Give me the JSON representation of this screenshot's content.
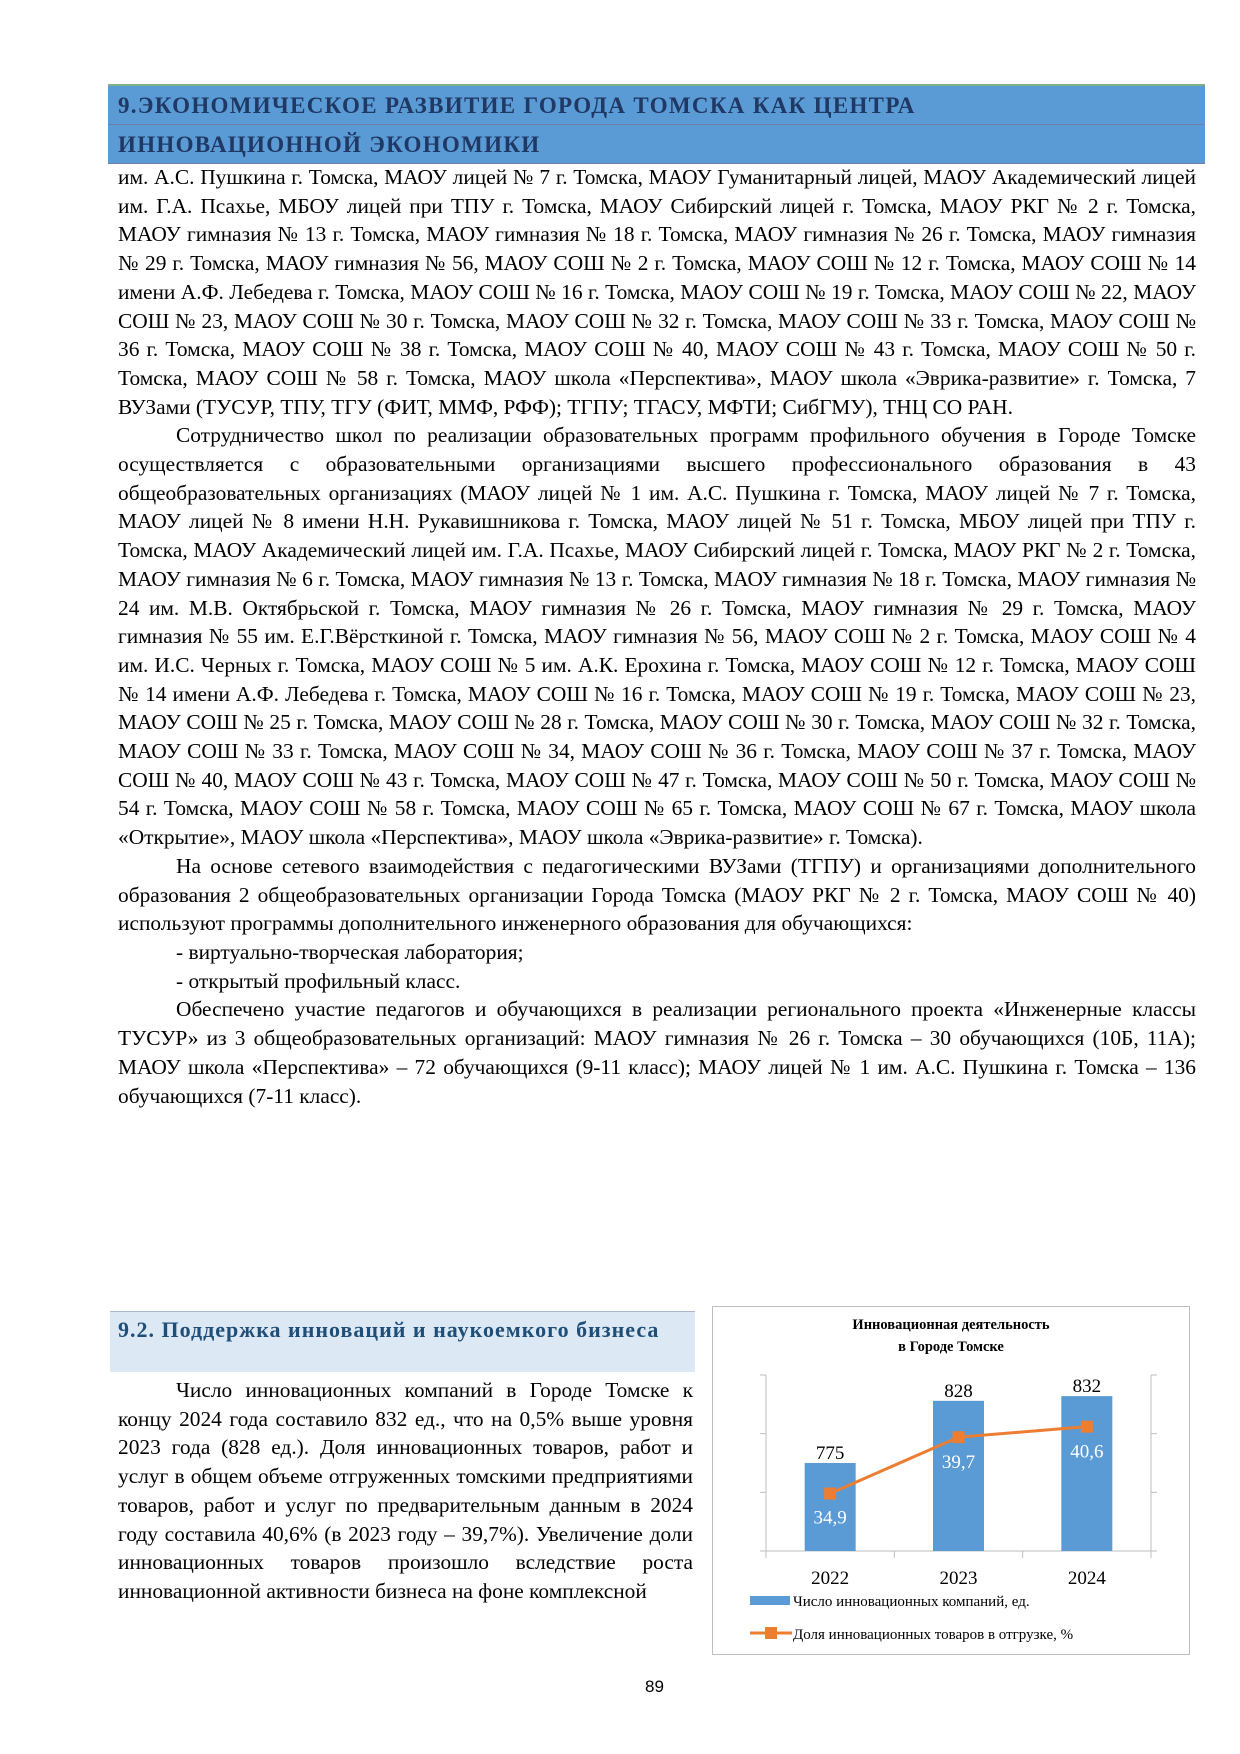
{
  "section_header": {
    "line1": "9.ЭКОНОМИЧЕСКОЕ РАЗВИТИЕ ГОРОДА ТОМСКА КАК ЦЕНТРА",
    "line2": "ИННОВАЦИОННОЙ ЭКОНОМИКИ"
  },
  "body": {
    "p1": "им. А.С. Пушкина г. Томска, МАОУ лицей № 7 г. Томска, МАОУ Гуманитарный лицей, МАОУ Академический лицей им. Г.А. Псахье, МБОУ лицей при ТПУ г. Томска, МАОУ Сибирский лицей г. Томска, МАОУ РКГ № 2 г. Томска, МАОУ гимназия № 13 г. Томска, МАОУ гимназия № 18 г. Томска, МАОУ гимназия № 26 г. Томска, МАОУ гимназия № 29 г. Томска, МАОУ гимназия № 56,  МАОУ СОШ № 2 г. Томска, МАОУ СОШ № 12 г. Томска, МАОУ СОШ № 14 имени А.Ф. Лебедева г. Томска, МАОУ СОШ № 16 г. Томска, МАОУ СОШ № 19 г. Томска, МАОУ СОШ № 22, МАОУ СОШ № 23, МАОУ СОШ № 30 г. Томска, МАОУ СОШ № 32 г. Томска, МАОУ СОШ № 33 г. Томска, МАОУ СОШ № 36 г. Томска, МАОУ СОШ № 38 г. Томска, МАОУ СОШ № 40, МАОУ СОШ № 43 г. Томска, МАОУ СОШ № 50 г. Томска, МАОУ СОШ № 58 г. Томска, МАОУ школа «Перспектива», МАОУ школа «Эврика-развитие» г. Томска, 7 ВУЗами (ТУСУР, ТПУ, ТГУ (ФИТ, ММФ, РФФ); ТГПУ; ТГАСУ, МФТИ; СибГМУ), ТНЦ СО РАН.",
    "p2": "Сотрудничество школ по реализации образовательных программ профильного обучения в Городе Томске осуществляется с образовательными организациями высшего профессионального образования в 43 общеобразовательных организациях (МАОУ лицей № 1 им. А.С. Пушкина г. Томска, МАОУ лицей № 7 г. Томска, МАОУ лицей № 8 имени Н.Н. Рукавишникова г. Томска, МАОУ лицей № 51 г. Томска, МБОУ лицей при ТПУ г. Томска, МАОУ Академический лицей им. Г.А. Псахье, МАОУ Сибирский лицей г. Томска, МАОУ РКГ № 2 г. Томска, МАОУ гимназия № 6 г. Томска, МАОУ гимназия № 13 г. Томска, МАОУ гимназия № 18 г. Томска, МАОУ гимназия № 24 им. М.В. Октябрьской г. Томска, МАОУ гимназия № 26 г. Томска, МАОУ гимназия № 29 г. Томска, МАОУ гимназия № 55 им. Е.Г.Вёрсткиной г. Томска, МАОУ гимназия № 56, МАОУ СОШ № 2 г. Томска, МАОУ СОШ № 4 им. И.С. Черных г. Томска, МАОУ СОШ № 5 им. А.К. Ерохина г. Томска, МАОУ СОШ № 12 г. Томска, МАОУ СОШ № 14 имени А.Ф. Лебедева г. Томска, МАОУ СОШ № 16 г. Томска, МАОУ СОШ № 19 г. Томска, МАОУ СОШ № 23, МАОУ СОШ № 25 г. Томска, МАОУ СОШ № 28 г. Томска, МАОУ СОШ № 30 г. Томска, МАОУ СОШ № 32 г. Томска, МАОУ СОШ № 33 г. Томска, МАОУ СОШ № 34, МАОУ СОШ № 36 г. Томска, МАОУ СОШ № 37 г. Томска, МАОУ СОШ № 40, МАОУ СОШ № 43 г. Томска, МАОУ СОШ № 47 г. Томска, МАОУ СОШ № 50 г. Томска, МАОУ СОШ № 54 г. Томска, МАОУ СОШ № 58 г. Томска, МАОУ СОШ № 65 г. Томска, МАОУ СОШ № 67 г. Томска, МАОУ школа «Открытие», МАОУ школа «Перспектива», МАОУ школа «Эврика-развитие» г. Томска).",
    "p3": "На основе сетевого взаимодействия с педагогическими ВУЗами (ТГПУ) и организациями дополнительного образования 2 общеобразовательных организации Города Томска (МАОУ РКГ № 2 г. Томска, МАОУ СОШ № 40) используют программы дополнительного инженерного образования для обучающихся:",
    "li1": "- виртуально-творческая лаборатория;",
    "li2": "- открытый профильный класс.",
    "p4": "Обеспечено участие педагогов и обучающихся в реализации регионального проекта «Инженерные классы ТУСУР» из 3 общеобразовательных организаций: МАОУ гимназия № 26 г. Томска – 30 обучающихся (10Б, 11А); МАОУ школа «Перспектива» – 72 обучающихся (9-11 класс); МАОУ лицей № 1 им. А.С. Пушкина г. Томска – 136 обучающихся (7-11 класс)."
  },
  "subsection": {
    "title": "9.2. Поддержка инноваций и наукоемкого бизнеса",
    "p1": "Число инновационных компаний в Городе Томске к концу 2024 года составило 832 ед., что на 0,5% выше уровня 2023 года (828 ед.). Доля инновационных товаров, работ и услуг в общем объеме отгруженных томскими предприятиями товаров, работ и услуг по предварительным данным в 2024 году составила 40,6% (в 2023 году – 39,7%). Увеличение доли инновационных товаров произошло вследствие роста инновационной активности бизнеса на фоне комплексной"
  },
  "chart_data": {
    "type": "bar",
    "title_line1": "Инновационная деятельность",
    "title_line2": "в Городе Томске",
    "categories": [
      "2022",
      "2023",
      "2024"
    ],
    "series": [
      {
        "name": "Число инновационных компаний, ед.",
        "type": "bar",
        "axis": "left",
        "values": [
          775,
          828,
          832
        ],
        "labels": [
          "775",
          "828",
          "832"
        ],
        "color": "#5b9bd5"
      },
      {
        "name": "Доля инновационных товаров в отгрузке, %",
        "type": "line",
        "axis": "right",
        "values": [
          34.9,
          39.7,
          40.6
        ],
        "labels": [
          "34,9",
          "39,7",
          "40,6"
        ],
        "color": "#ed7d31"
      }
    ],
    "ylim_left": [
      700,
      850
    ],
    "yticks_left": [
      "700",
      "750",
      "800",
      "850"
    ],
    "ylim_right": [
      30,
      45
    ],
    "yticks_right": [
      "30",
      "35",
      "40",
      "45"
    ],
    "legend_position": "bottom",
    "grid": false
  },
  "page_number": "89"
}
